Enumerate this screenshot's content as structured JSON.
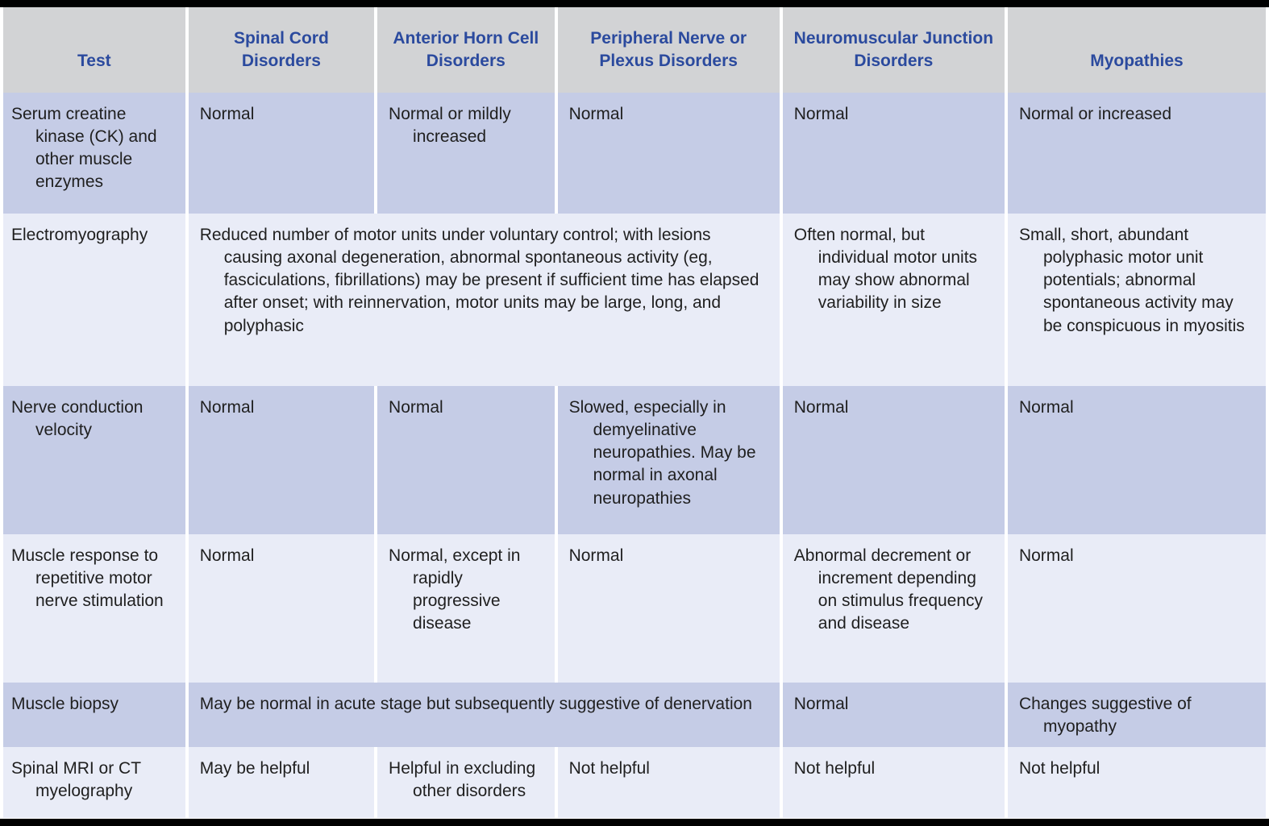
{
  "colors": {
    "header_bg": "#d2d3d5",
    "header_text": "#2b4a9e",
    "row_dark_bg": "#c5cce6",
    "row_light_bg": "#e9ecf7",
    "body_text": "#1f1f1f",
    "rule": "#000000"
  },
  "table": {
    "columns": [
      {
        "label": "Test"
      },
      {
        "label": "Spinal Cord Disorders"
      },
      {
        "label": "Anterior Horn Cell Disorders"
      },
      {
        "label": "Peripheral Nerve or Plexus Disorders"
      },
      {
        "label": "Neuromuscular Junction Disorders"
      },
      {
        "label": "Myopathies"
      }
    ],
    "rows": [
      {
        "test": "Serum creatine kinase (CK) and other muscle enzymes",
        "cells": [
          "Normal",
          "Normal or mildly increased",
          "Normal",
          "Normal",
          "Normal or increased"
        ]
      },
      {
        "test": "Electromyography",
        "cells": [
          "Reduced number of motor units under voluntary control; with lesions causing axonal degeneration, abnormal spontaneous activity (eg, fasciculations, fibrillations) may be present if sufficient time has elapsed after onset; with reinnervation, motor units may be large, long, and polyphasic",
          "Often normal, but individual motor units may show abnormal variability in size",
          "Small, short, abundant polyphasic motor unit potentials; abnormal spontaneous activity may be conspicuous in myositis"
        ]
      },
      {
        "test": "Nerve conduction velocity",
        "cells": [
          "Normal",
          "Normal",
          "Slowed, especially in demyelinative neuropathies. May be normal in axonal neuropathies",
          "Normal",
          "Normal"
        ]
      },
      {
        "test": "Muscle response to repetitive motor nerve stimulation",
        "cells": [
          "Normal",
          "Normal, except in rapidly progressive disease",
          "Normal",
          "Abnormal decrement or increment depending on stimulus frequency and disease",
          "Normal"
        ]
      },
      {
        "test": "Muscle biopsy",
        "cells": [
          "May be normal in acute stage but subsequently suggestive of denervation",
          "Normal",
          "Changes suggestive of myopathy"
        ]
      },
      {
        "test": "Spinal MRI or CT myelography",
        "cells": [
          "May be helpful",
          "Helpful in excluding other disorders",
          "Not helpful",
          "Not helpful",
          "Not helpful"
        ]
      }
    ]
  }
}
